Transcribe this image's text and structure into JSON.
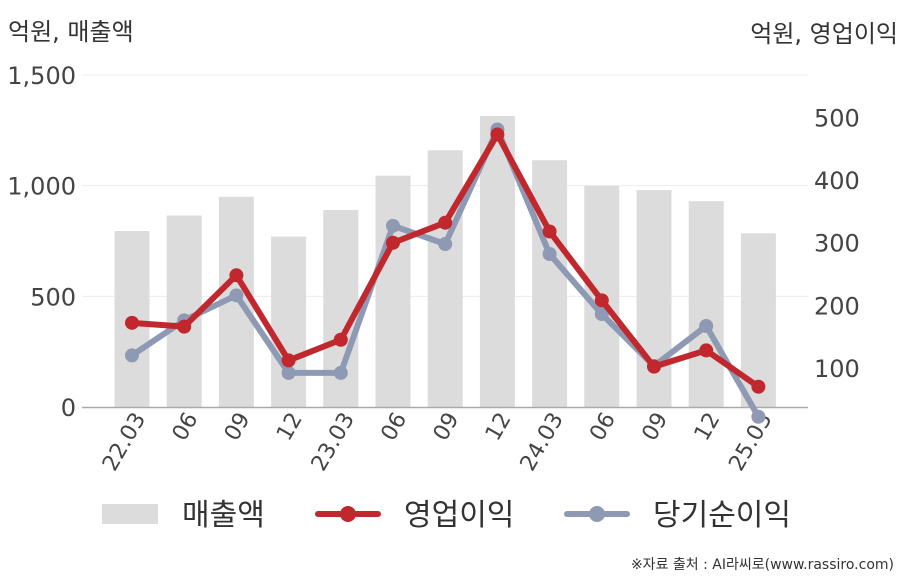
{
  "units": {
    "left": "억원, 매출액",
    "right": "억원, 영업이익"
  },
  "source": "※자료 출처 : AI라씨로(www.rassiro.com)",
  "chart_data": {
    "type": "bar+line",
    "categories": [
      "22.03",
      "06",
      "09",
      "12",
      "23.03",
      "06",
      "09",
      "12",
      "24.03",
      "06",
      "09",
      "12",
      "25.03"
    ],
    "left_axis": {
      "ticks": [
        "0",
        "500",
        "1,000",
        "1,500"
      ],
      "tick_values": [
        0,
        500,
        1000,
        1500
      ],
      "ylim": [
        0,
        1500
      ]
    },
    "right_axis": {
      "ticks": [
        "100",
        "200",
        "300",
        "400",
        "500"
      ],
      "tick_values": [
        100,
        200,
        300,
        400,
        500
      ],
      "ylim": [
        20,
        560
      ]
    },
    "grid": true,
    "legend_position": "bottom",
    "series": [
      {
        "name": "매출액",
        "type": "bar",
        "axis": "left",
        "color": "#dcdcdc",
        "values": [
          795,
          865,
          950,
          770,
          890,
          1045,
          1160,
          1315,
          1115,
          1000,
          980,
          930,
          785
        ]
      },
      {
        "name": "영업이익",
        "type": "line",
        "axis": "right",
        "color": "#c0282e",
        "values": [
          172,
          166,
          248,
          112,
          145,
          300,
          332,
          473,
          318,
          208,
          102,
          128,
          70
        ]
      },
      {
        "name": "당기순이익",
        "type": "line",
        "axis": "right",
        "color": "#8e9ab3",
        "values": [
          120,
          176,
          216,
          92,
          92,
          327,
          298,
          481,
          282,
          186,
          103,
          167,
          22
        ]
      }
    ]
  }
}
